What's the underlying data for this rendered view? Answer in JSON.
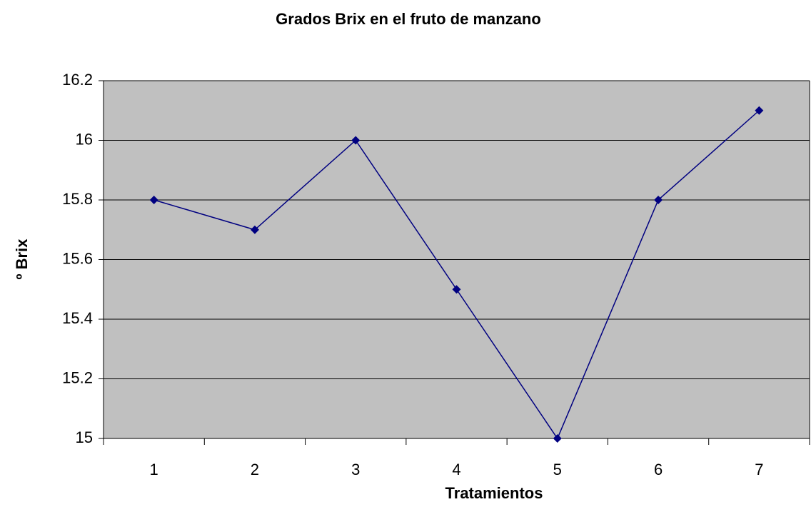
{
  "chart_data": {
    "type": "line",
    "title": "Grados Brix en el fruto de manzano",
    "x_label": "Tratamientos",
    "y_label": "º Brix",
    "categories": [
      "1",
      "2",
      "3",
      "4",
      "5",
      "6",
      "7"
    ],
    "series": [
      {
        "name": "Brix",
        "color": "#000080",
        "values": [
          15.8,
          15.7,
          16,
          15.5,
          15,
          15.8,
          16.1
        ]
      }
    ],
    "ylim": [
      15,
      16.2
    ],
    "yticks": [
      15,
      15.2,
      15.4,
      15.6,
      15.8,
      16,
      16.2
    ],
    "grid": true,
    "plot_background": "#c0c0c0"
  }
}
